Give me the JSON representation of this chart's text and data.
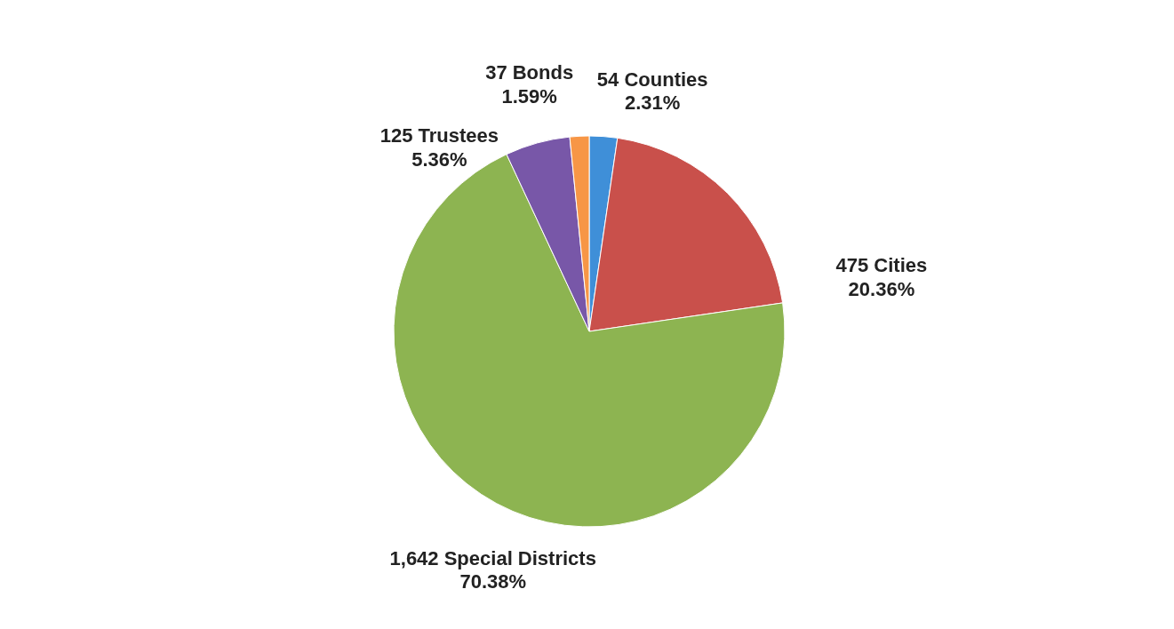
{
  "chart_data": {
    "type": "pie",
    "categories": [
      "54 Counties",
      "475 Cities",
      "1,642 Special Districts",
      "125 Trustees",
      "37 Bonds"
    ],
    "values": [
      2.31,
      20.36,
      70.38,
      5.36,
      1.59
    ],
    "value_labels": [
      "2.31%",
      "20.36%",
      "70.38%",
      "5.36%",
      "1.59%"
    ],
    "colors": [
      "#3f8fd8",
      "#c9504b",
      "#8db451",
      "#7857a8",
      "#f79646"
    ]
  }
}
